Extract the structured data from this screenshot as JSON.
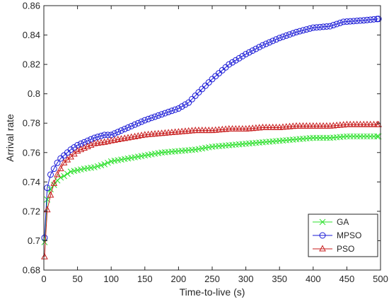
{
  "chart_data": {
    "type": "line",
    "title": "",
    "xlabel": "Time-to-live (s)",
    "ylabel": "Arrival rate",
    "xlim": [
      0,
      500
    ],
    "ylim": [
      0.68,
      0.86
    ],
    "xticks": [
      0,
      50,
      100,
      150,
      200,
      250,
      300,
      350,
      400,
      450,
      500
    ],
    "yticks": [
      0.68,
      0.7,
      0.72,
      0.74,
      0.76,
      0.78,
      0.8,
      0.82,
      0.84,
      0.86
    ],
    "grid": false,
    "legend_position": "bottom-right",
    "series": [
      {
        "name": "GA",
        "color": "#2ee02e",
        "marker": "x",
        "points": [
          [
            1,
            0.699
          ],
          [
            5,
            0.728
          ],
          [
            10,
            0.735
          ],
          [
            15,
            0.738
          ],
          [
            20,
            0.741
          ],
          [
            25,
            0.743
          ],
          [
            30,
            0.744
          ],
          [
            40,
            0.747
          ],
          [
            50,
            0.748
          ],
          [
            60,
            0.749
          ],
          [
            75,
            0.75
          ],
          [
            90,
            0.752
          ],
          [
            100,
            0.754
          ],
          [
            125,
            0.756
          ],
          [
            150,
            0.758
          ],
          [
            175,
            0.76
          ],
          [
            200,
            0.761
          ],
          [
            225,
            0.762
          ],
          [
            250,
            0.764
          ],
          [
            275,
            0.765
          ],
          [
            300,
            0.766
          ],
          [
            325,
            0.767
          ],
          [
            350,
            0.768
          ],
          [
            375,
            0.769
          ],
          [
            400,
            0.77
          ],
          [
            425,
            0.77
          ],
          [
            450,
            0.771
          ],
          [
            475,
            0.771
          ],
          [
            497,
            0.771
          ]
        ]
      },
      {
        "name": "MPSO",
        "color": "#1a1ad6",
        "marker": "o",
        "points": [
          [
            1,
            0.702
          ],
          [
            5,
            0.736
          ],
          [
            10,
            0.745
          ],
          [
            15,
            0.749
          ],
          [
            20,
            0.753
          ],
          [
            25,
            0.756
          ],
          [
            30,
            0.758
          ],
          [
            40,
            0.762
          ],
          [
            50,
            0.765
          ],
          [
            60,
            0.767
          ],
          [
            75,
            0.77
          ],
          [
            90,
            0.772
          ],
          [
            100,
            0.772
          ],
          [
            125,
            0.777
          ],
          [
            150,
            0.782
          ],
          [
            175,
            0.786
          ],
          [
            200,
            0.79
          ],
          [
            215,
            0.794
          ],
          [
            230,
            0.801
          ],
          [
            250,
            0.81
          ],
          [
            275,
            0.82
          ],
          [
            300,
            0.827
          ],
          [
            325,
            0.833
          ],
          [
            350,
            0.838
          ],
          [
            375,
            0.842
          ],
          [
            400,
            0.845
          ],
          [
            425,
            0.846
          ],
          [
            445,
            0.849
          ],
          [
            475,
            0.85
          ],
          [
            497,
            0.851
          ]
        ]
      },
      {
        "name": "PSO",
        "color": "#c81e1e",
        "marker": "^",
        "points": [
          [
            1,
            0.689
          ],
          [
            5,
            0.721
          ],
          [
            10,
            0.731
          ],
          [
            15,
            0.739
          ],
          [
            20,
            0.745
          ],
          [
            25,
            0.749
          ],
          [
            30,
            0.753
          ],
          [
            40,
            0.757
          ],
          [
            50,
            0.761
          ],
          [
            60,
            0.763
          ],
          [
            75,
            0.766
          ],
          [
            90,
            0.767
          ],
          [
            100,
            0.768
          ],
          [
            125,
            0.77
          ],
          [
            150,
            0.772
          ],
          [
            175,
            0.773
          ],
          [
            200,
            0.774
          ],
          [
            225,
            0.775
          ],
          [
            250,
            0.775
          ],
          [
            275,
            0.776
          ],
          [
            300,
            0.776
          ],
          [
            325,
            0.777
          ],
          [
            350,
            0.777
          ],
          [
            375,
            0.778
          ],
          [
            400,
            0.778
          ],
          [
            425,
            0.778
          ],
          [
            450,
            0.779
          ],
          [
            475,
            0.779
          ],
          [
            497,
            0.779
          ]
        ]
      }
    ]
  }
}
